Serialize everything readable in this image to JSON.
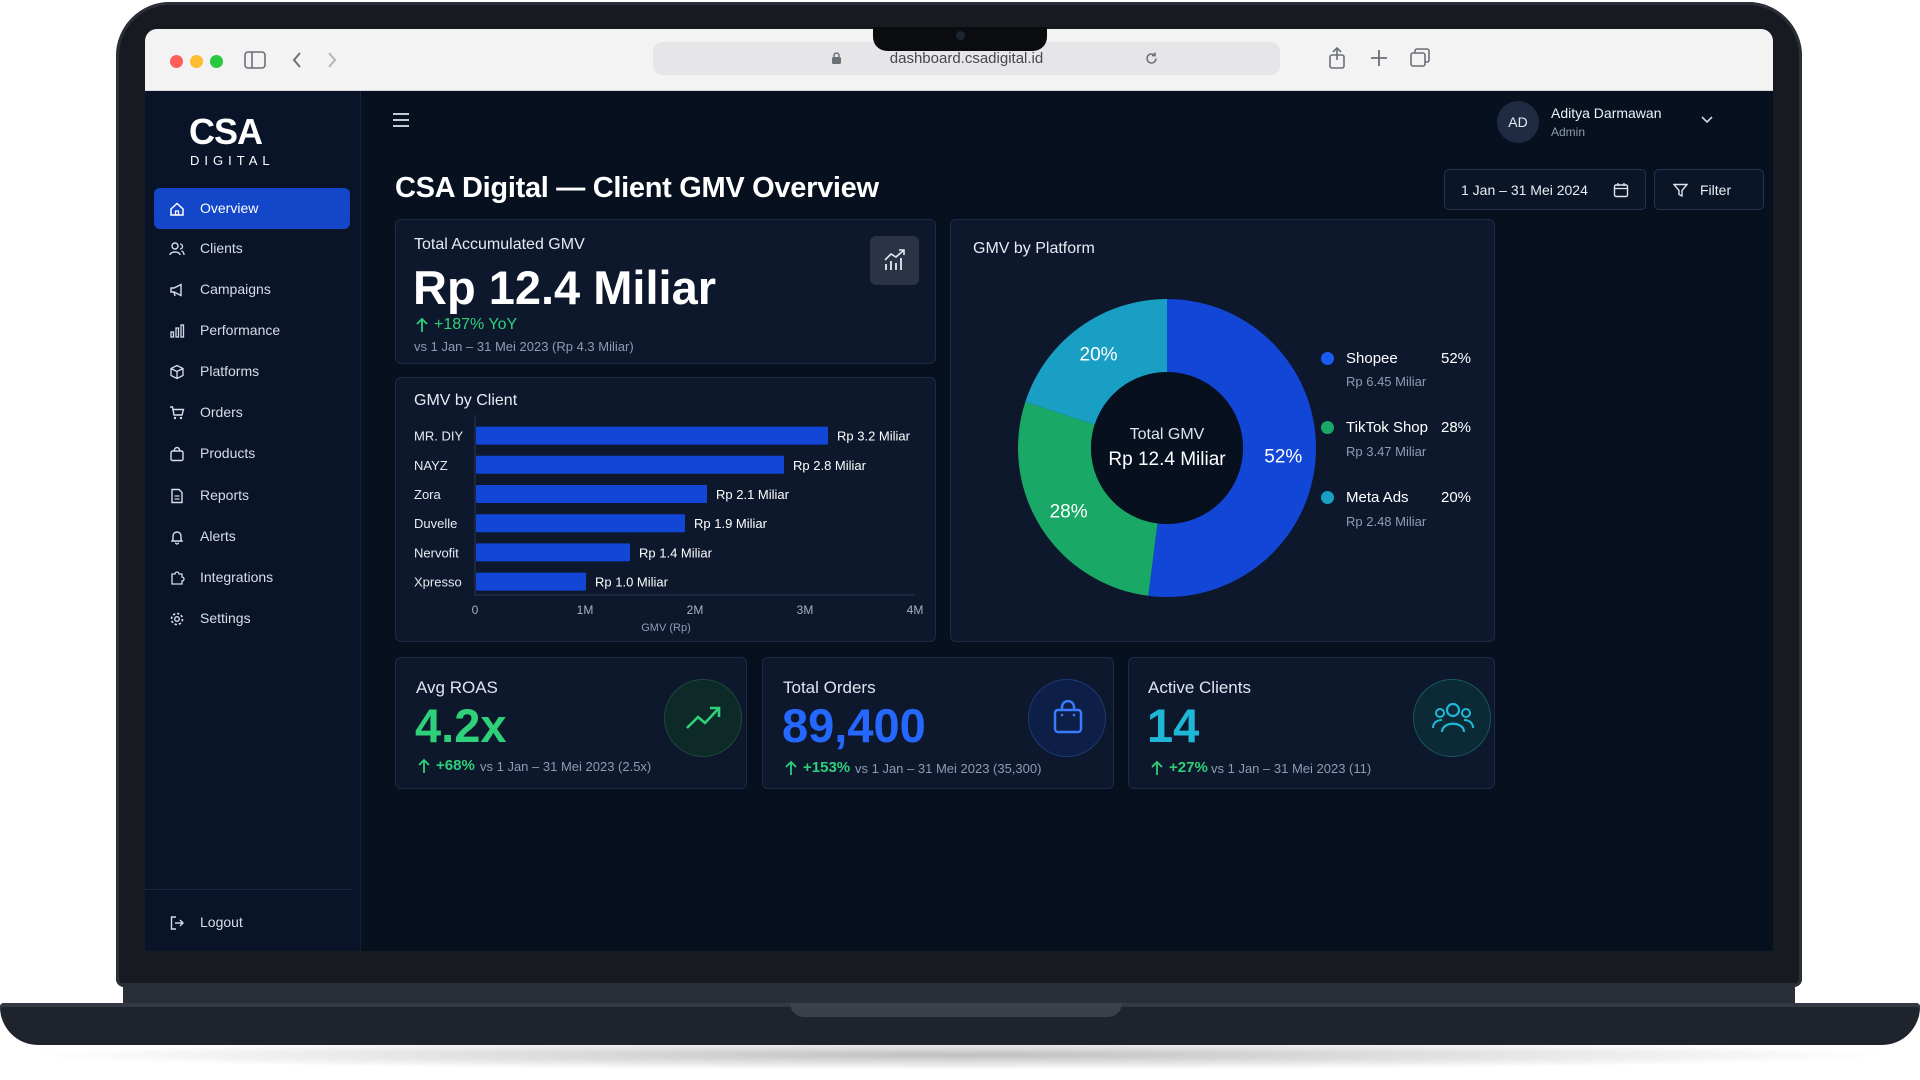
{
  "browser": {
    "url": "dashboard.csadigital.id"
  },
  "brand": {
    "name": "CSA",
    "sub": "DIGITAL"
  },
  "nav": [
    {
      "label": "Overview",
      "icon": "home-icon"
    },
    {
      "label": "Clients",
      "icon": "users-icon"
    },
    {
      "label": "Campaigns",
      "icon": "megaphone-icon"
    },
    {
      "label": "Performance",
      "icon": "bar-chart-icon"
    },
    {
      "label": "Platforms",
      "icon": "box-icon"
    },
    {
      "label": "Orders",
      "icon": "cart-icon"
    },
    {
      "label": "Products",
      "icon": "bag-icon"
    },
    {
      "label": "Reports",
      "icon": "document-icon"
    },
    {
      "label": "Alerts",
      "icon": "bell-icon"
    },
    {
      "label": "Integrations",
      "icon": "puzzle-icon"
    },
    {
      "label": "Settings",
      "icon": "gear-icon"
    }
  ],
  "logout": "Logout",
  "user": {
    "initials": "AD",
    "name": "Aditya Darmawan",
    "role": "Admin"
  },
  "page": {
    "title": "CSA Digital — Client GMV Overview",
    "date_range": "1 Jan – 31 Mei 2024",
    "filter": "Filter"
  },
  "gmv_total": {
    "label": "Total Accumulated GMV",
    "value": "Rp 12.4 Miliar",
    "change": "+187% YoY",
    "compare": "vs 1 Jan – 31 Mei 2023 (Rp 4.3 Miliar)"
  },
  "bar_card": {
    "title": "GMV by Client"
  },
  "donut_card": {
    "title": "GMV by Platform",
    "center_label": "Total GMV",
    "center_value": "Rp 12.4 Miliar",
    "legend": [
      {
        "name": "Shopee",
        "pct": "52%",
        "amount": "Rp 6.45 Miliar"
      },
      {
        "name": "TikTok Shop",
        "pct": "28%",
        "amount": "Rp 3.47 Miliar"
      },
      {
        "name": "Meta Ads",
        "pct": "20%",
        "amount": "Rp 2.48 Miliar"
      }
    ]
  },
  "kpis": [
    {
      "label": "Avg ROAS",
      "value": "4.2x",
      "change": "+68%",
      "compare": "vs 1 Jan – 31 Mei 2023 (2.5x)",
      "icon": "trend-up-icon"
    },
    {
      "label": "Total Orders",
      "value": "89,400",
      "change": "+153%",
      "compare": "vs 1 Jan – 31 Mei 2023 (35,300)",
      "icon": "shopping-bag-icon"
    },
    {
      "label": "Active Clients",
      "value": "14",
      "change": "+27%",
      "compare": "vs 1 Jan – 31 Mei 2023 (11)",
      "icon": "group-icon"
    }
  ],
  "colors": {
    "shopee": "#1246d6",
    "tiktok": "#19a866",
    "meta": "#1a9fc4",
    "accent": "#1346c9",
    "positive": "#2fd07a"
  },
  "chart_data": [
    {
      "type": "bar",
      "orientation": "horizontal",
      "title": "GMV by Client",
      "xlabel": "GMV (Rp)",
      "categories": [
        "MR. DIY",
        "NAYZ",
        "Zora",
        "Duvelle",
        "Nervofit",
        "Xpresso"
      ],
      "values": [
        3.2,
        2.8,
        2.1,
        1.9,
        1.4,
        1.0
      ],
      "value_labels": [
        "Rp 3.2 Miliar",
        "Rp 2.8 Miliar",
        "Rp 2.1 Miliar",
        "Rp 1.9 Miliar",
        "Rp 1.4 Miliar",
        "Rp 1.0 Miliar"
      ],
      "xticks": [
        "0",
        "1M",
        "2M",
        "3M",
        "4M"
      ],
      "xlim": [
        0,
        4
      ]
    },
    {
      "type": "pie",
      "style": "donut",
      "title": "GMV by Platform",
      "labels": [
        "Shopee",
        "TikTok Shop",
        "Meta Ads"
      ],
      "values": [
        52,
        28,
        20
      ],
      "slice_labels": [
        "52%",
        "28%",
        "20%"
      ]
    }
  ]
}
